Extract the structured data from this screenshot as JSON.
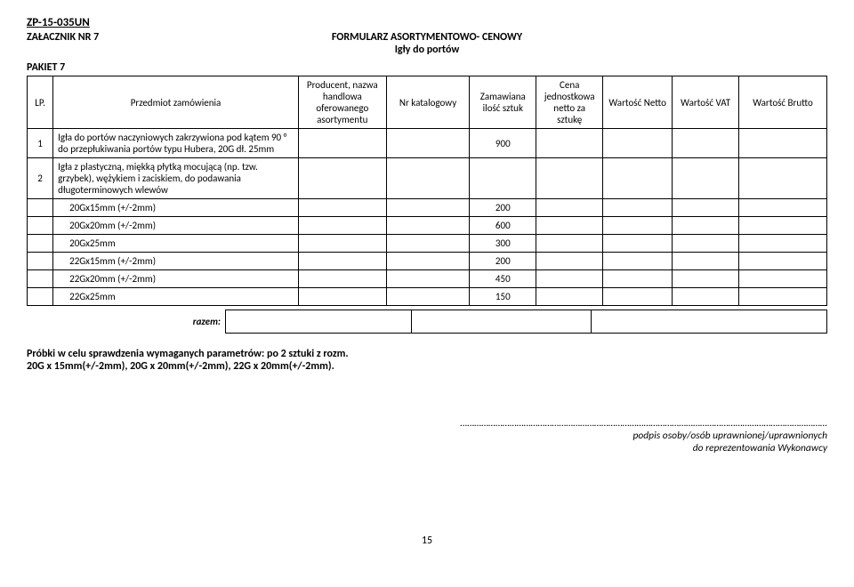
{
  "header": {
    "doc_id": "ZP-15-035UN",
    "attachment": "ZAŁACZNIK NR 7",
    "form_title": "FORMULARZ ASORTYMENTOWO- CENOWY",
    "form_subtitle": "Igły do portów",
    "packet": "PAKIET 7"
  },
  "table": {
    "headers": {
      "lp": "LP.",
      "przedmiot": "Przedmiot zamówienia",
      "producent": "Producent, nazwa handlowa oferowanego asortymentu",
      "katalog": "Nr katalogowy",
      "zamawiana": "Zamawiana ilość sztuk",
      "cena": "Cena jednostkowa netto za sztukę",
      "netto": "Wartość Netto",
      "vat": "Wartość VAT",
      "brutto": "Wartość Brutto"
    },
    "rows": [
      {
        "lp": "1",
        "desc": "Igła do portów naczyniowych zakrzywiona pod kątem 90 ° do przepłukiwania portów typu Hubera, 20G dł. 25mm",
        "qty": "900",
        "indent": 0
      },
      {
        "lp": "2",
        "desc": "Igła z plastyczną, miękką płytką mocującą (np. tzw. grzybek), wężykiem i zaciskiem, do podawania długoterminowych wlewów",
        "qty": "",
        "indent": 0
      },
      {
        "lp": "",
        "desc": "20Gx15mm (+/-2mm)",
        "qty": "200",
        "indent": 1
      },
      {
        "lp": "",
        "desc": "20Gx20mm (+/-2mm)",
        "qty": "600",
        "indent": 1
      },
      {
        "lp": "",
        "desc": "20Gx25mm",
        "qty": "300",
        "indent": 1
      },
      {
        "lp": "",
        "desc": "22Gx15mm (+/-2mm)",
        "qty": "200",
        "indent": 1
      },
      {
        "lp": "",
        "desc": "22Gx20mm (+/-2mm)",
        "qty": "450",
        "indent": 1
      },
      {
        "lp": "",
        "desc": "22Gx25mm",
        "qty": "150",
        "indent": 1
      }
    ]
  },
  "razem": {
    "label": "razem:"
  },
  "samples": {
    "line1": "Próbki w celu sprawdzenia wymaganych parametrów: po 2 sztuki z rozm.",
    "line2": "20G x 15mm(+/-2mm), 20G x 20mm(+/-2mm), 22G x 20mm(+/-2mm)."
  },
  "signature": {
    "dots": "…………………………………………………………………………………………………………………………………………",
    "line1": "podpis osoby/osób uprawnionej/uprawnionych",
    "line2": "do reprezentowania Wykonawcy"
  },
  "page": "15"
}
